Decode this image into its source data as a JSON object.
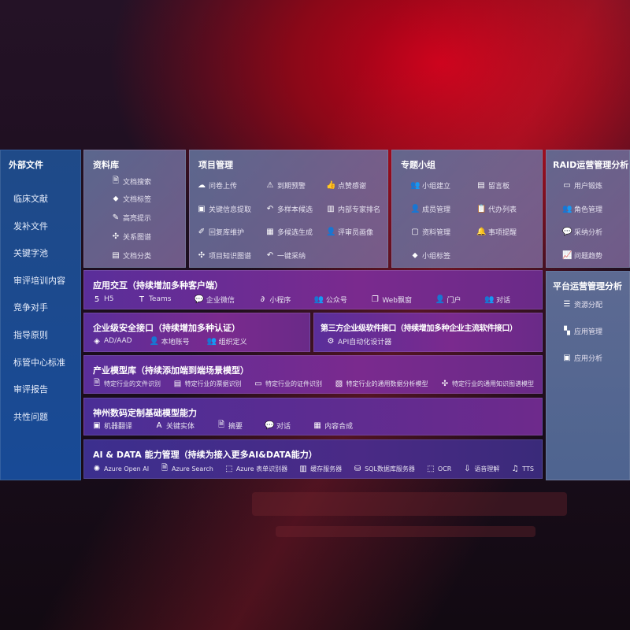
{
  "left": {
    "title": "外部文件",
    "items": [
      "临床文献",
      "发补文件",
      "关键字池",
      "审评培训内容",
      "竞争对手",
      "指导原则",
      "标管中心标准",
      "审评报告",
      "共性问题"
    ]
  },
  "library": {
    "title": "资料库",
    "items": [
      {
        "icon": "document-search-icon",
        "glyph": "🗎",
        "label": "文档搜索"
      },
      {
        "icon": "tag-icon",
        "glyph": "⬥",
        "label": "文档标签"
      },
      {
        "icon": "pen-icon",
        "glyph": "✎",
        "label": "高亮提示"
      },
      {
        "icon": "graph-icon",
        "glyph": "✣",
        "label": "关系图谱"
      },
      {
        "icon": "document-classify-icon",
        "glyph": "▤",
        "label": "文档分类"
      }
    ]
  },
  "project": {
    "title": "项目管理",
    "items": [
      {
        "icon": "cloud-upload-icon",
        "glyph": "☁",
        "label": "问卷上传"
      },
      {
        "icon": "alarm-icon",
        "glyph": "⚠",
        "label": "到期预警"
      },
      {
        "icon": "thumbs-up-icon",
        "glyph": "👍",
        "label": "点赞感谢"
      },
      {
        "icon": "extract-icon",
        "glyph": "▣",
        "label": "关键信息提取"
      },
      {
        "icon": "reply-icon",
        "glyph": "↶",
        "label": "多样本候选"
      },
      {
        "icon": "ranking-icon",
        "glyph": "▥",
        "label": "内部专家排名"
      },
      {
        "icon": "edit-icon",
        "glyph": "✐",
        "label": "回复库维护"
      },
      {
        "icon": "puzzle-icon",
        "glyph": "▦",
        "label": "多候选生成"
      },
      {
        "icon": "user-icon",
        "glyph": "👤",
        "label": "评审员画像"
      },
      {
        "icon": "graph-icon",
        "glyph": "✣",
        "label": "项目知识图谱"
      },
      {
        "icon": "reply-icon",
        "glyph": "↶",
        "label": "一键采纳"
      }
    ]
  },
  "group": {
    "title": "专题小组",
    "items": [
      {
        "icon": "team-icon",
        "glyph": "👥",
        "label": "小组建立"
      },
      {
        "icon": "bbs-icon",
        "glyph": "▤",
        "label": "留言板"
      },
      {
        "icon": "add-user-icon",
        "glyph": "👤",
        "label": "成员管理"
      },
      {
        "icon": "clipboard-icon",
        "glyph": "📋",
        "label": "代办列表"
      },
      {
        "icon": "folder-icon",
        "glyph": "▢",
        "label": "资料管理"
      },
      {
        "icon": "bell-icon",
        "glyph": "🔔",
        "label": "事项提醒"
      },
      {
        "icon": "tag-icon",
        "glyph": "⬥",
        "label": "小组标签"
      }
    ]
  },
  "raid": {
    "title": "RAID运营管理分析",
    "items": [
      {
        "icon": "id-card-icon",
        "glyph": "▭",
        "label": "用户锻炼"
      },
      {
        "icon": "team-icon",
        "glyph": "👥",
        "label": "角色管理"
      },
      {
        "icon": "qa-icon",
        "glyph": "💬",
        "label": "采纳分析"
      },
      {
        "icon": "trend-icon",
        "glyph": "📈",
        "label": "问题趋势"
      }
    ]
  },
  "platform": {
    "title": "平台运营管理分析",
    "items": [
      {
        "icon": "checklist-icon",
        "glyph": "☰",
        "label": "资源分配"
      },
      {
        "icon": "apps-icon",
        "glyph": "▚",
        "label": "应用管理"
      },
      {
        "icon": "analytics-icon",
        "glyph": "▣",
        "label": "应用分析"
      }
    ]
  },
  "interaction": {
    "title": "应用交互（持续增加多种客户端）",
    "items": [
      {
        "icon": "html5-icon",
        "glyph": "5",
        "label": "H5"
      },
      {
        "icon": "teams-icon",
        "glyph": "T",
        "label": "Teams"
      },
      {
        "icon": "wechat-work-icon",
        "glyph": "💬",
        "label": "企业微信"
      },
      {
        "icon": "mini-program-icon",
        "glyph": "∂",
        "label": "小程序"
      },
      {
        "icon": "official-account-icon",
        "glyph": "👥",
        "label": "公众号"
      },
      {
        "icon": "web-window-icon",
        "glyph": "❐",
        "label": "Web飘窗"
      },
      {
        "icon": "portal-icon",
        "glyph": "👤",
        "label": "门户"
      },
      {
        "icon": "chat-people-icon",
        "glyph": "👥",
        "label": "对话"
      }
    ]
  },
  "security": {
    "title": "企业级安全接口（持续增加多种认证）",
    "items": [
      {
        "icon": "ad-icon",
        "glyph": "◈",
        "label": "AD/AAD"
      },
      {
        "icon": "local-account-icon",
        "glyph": "👤",
        "label": "本地账号"
      },
      {
        "icon": "organization-icon",
        "glyph": "👥",
        "label": "组织定义"
      }
    ]
  },
  "thirdparty": {
    "title": "第三方企业级软件接口（持续增加多种企业主流软件接口）",
    "items": [
      {
        "icon": "gear-icon",
        "glyph": "⚙",
        "label": "API自动化设计器"
      }
    ]
  },
  "industry": {
    "title": "产业模型库（持续添加端到端场景模型）",
    "items": [
      {
        "icon": "file-icon",
        "glyph": "🗎",
        "label": "特定行业的文件识别"
      },
      {
        "icon": "receipt-icon",
        "glyph": "▤",
        "label": "特定行业的票据识别"
      },
      {
        "icon": "id-card-icon",
        "glyph": "▭",
        "label": "特定行业的证件识别"
      },
      {
        "icon": "chart-icon",
        "glyph": "▧",
        "label": "特定行业的通用数据分析模型"
      },
      {
        "icon": "graph-icon",
        "glyph": "✣",
        "label": "特定行业的通用知识图谱模型"
      }
    ]
  },
  "base": {
    "title": "神州数码定制基础模型能力",
    "items": [
      {
        "icon": "translate-icon",
        "glyph": "▣",
        "label": "机器翻译"
      },
      {
        "icon": "entity-icon",
        "glyph": "A",
        "label": "关键实体"
      },
      {
        "icon": "summary-icon",
        "glyph": "🗎",
        "label": "摘要"
      },
      {
        "icon": "chat-icon",
        "glyph": "💬",
        "label": "对话"
      },
      {
        "icon": "compose-icon",
        "glyph": "▦",
        "label": "内容合成"
      }
    ]
  },
  "ai": {
    "title": "AI & DATA 能力管理（持续为接入更多AI&DATA能力）",
    "items": [
      {
        "icon": "openai-icon",
        "glyph": "✺",
        "label": "Azure Open AI"
      },
      {
        "icon": "search-doc-icon",
        "glyph": "🗎",
        "label": "Azure Search"
      },
      {
        "icon": "form-recognizer-icon",
        "glyph": "⬚",
        "label": "Azure 表单识别器"
      },
      {
        "icon": "cache-server-icon",
        "glyph": "▥",
        "label": "缓存服务器"
      },
      {
        "icon": "database-icon",
        "glyph": "⛁",
        "label": "SQL数据库服务器"
      },
      {
        "icon": "ocr-icon",
        "glyph": "⬚",
        "label": "OCR"
      },
      {
        "icon": "speech-icon",
        "glyph": "⇩",
        "label": "语音理解"
      },
      {
        "icon": "tts-icon",
        "glyph": "♫",
        "label": "TTS"
      }
    ]
  }
}
